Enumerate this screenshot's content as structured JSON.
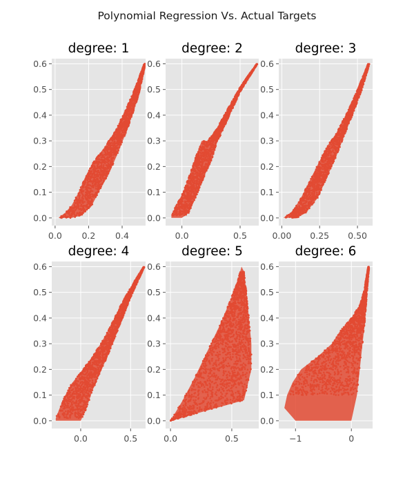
{
  "suptitle": "Polynomial Regression Vs. Actual Targets",
  "colors": {
    "points": "#e24a33",
    "panel_bg": "#e5e5e5",
    "grid": "#ffffff",
    "tick_text": "#555555"
  },
  "chart_data": [
    {
      "type": "scatter",
      "title": "degree: 1",
      "xlim": [
        -0.02,
        0.54
      ],
      "ylim": [
        -0.03,
        0.62
      ],
      "xticks": [
        {
          "v": 0.0,
          "label": "0.0"
        },
        {
          "v": 0.2,
          "label": "0.2"
        },
        {
          "v": 0.4,
          "label": "0.4"
        }
      ],
      "yticks": [
        {
          "v": 0.0,
          "label": "0.0"
        },
        {
          "v": 0.1,
          "label": "0.1"
        },
        {
          "v": 0.2,
          "label": "0.2"
        },
        {
          "v": 0.3,
          "label": "0.3"
        },
        {
          "v": 0.4,
          "label": "0.4"
        },
        {
          "v": 0.5,
          "label": "0.5"
        },
        {
          "v": 0.6,
          "label": "0.6"
        }
      ],
      "upper_edge": [
        [
          0.02,
          0.0
        ],
        [
          0.06,
          0.02
        ],
        [
          0.1,
          0.05
        ],
        [
          0.14,
          0.1
        ],
        [
          0.18,
          0.16
        ],
        [
          0.22,
          0.21
        ],
        [
          0.3,
          0.28
        ],
        [
          0.36,
          0.34
        ],
        [
          0.42,
          0.42
        ],
        [
          0.48,
          0.51
        ],
        [
          0.53,
          0.6
        ]
      ],
      "lower_edge": [
        [
          0.02,
          0.0
        ],
        [
          0.1,
          0.0
        ],
        [
          0.16,
          0.01
        ],
        [
          0.22,
          0.05
        ],
        [
          0.26,
          0.1
        ],
        [
          0.32,
          0.17
        ],
        [
          0.38,
          0.26
        ],
        [
          0.44,
          0.36
        ],
        [
          0.5,
          0.48
        ],
        [
          0.54,
          0.6
        ]
      ]
    },
    {
      "type": "scatter",
      "title": "degree: 2",
      "xlim": [
        -0.14,
        0.66
      ],
      "ylim": [
        -0.03,
        0.62
      ],
      "xticks": [
        {
          "v": 0.0,
          "label": "0.0"
        },
        {
          "v": 0.5,
          "label": "0.5"
        }
      ],
      "yticks": [
        {
          "v": 0.0,
          "label": "0.0"
        },
        {
          "v": 0.1,
          "label": "0.1"
        },
        {
          "v": 0.2,
          "label": "0.2"
        },
        {
          "v": 0.3,
          "label": "0.3"
        },
        {
          "v": 0.4,
          "label": "0.4"
        },
        {
          "v": 0.5,
          "label": "0.5"
        },
        {
          "v": 0.6,
          "label": "0.6"
        }
      ],
      "upper_edge": [
        [
          -0.09,
          0.01
        ],
        [
          -0.06,
          0.04
        ],
        [
          0.0,
          0.09
        ],
        [
          0.06,
          0.16
        ],
        [
          0.12,
          0.24
        ],
        [
          0.17,
          0.3
        ],
        [
          0.22,
          0.3
        ],
        [
          0.3,
          0.35
        ],
        [
          0.4,
          0.43
        ],
        [
          0.5,
          0.51
        ],
        [
          0.64,
          0.6
        ]
      ],
      "lower_edge": [
        [
          -0.09,
          0.0
        ],
        [
          0.0,
          0.0
        ],
        [
          0.06,
          0.02
        ],
        [
          0.12,
          0.08
        ],
        [
          0.2,
          0.17
        ],
        [
          0.26,
          0.23
        ],
        [
          0.3,
          0.29
        ],
        [
          0.4,
          0.39
        ],
        [
          0.5,
          0.49
        ],
        [
          0.65,
          0.6
        ]
      ]
    },
    {
      "type": "scatter",
      "title": "degree: 3",
      "xlim": [
        -0.02,
        0.6
      ],
      "ylim": [
        -0.03,
        0.62
      ],
      "xticks": [
        {
          "v": 0.0,
          "label": "0.00"
        },
        {
          "v": 0.25,
          "label": "0.25"
        },
        {
          "v": 0.5,
          "label": "0.50"
        }
      ],
      "yticks": [
        {
          "v": 0.0,
          "label": "0.0"
        },
        {
          "v": 0.1,
          "label": "0.1"
        },
        {
          "v": 0.2,
          "label": "0.2"
        },
        {
          "v": 0.3,
          "label": "0.3"
        },
        {
          "v": 0.4,
          "label": "0.4"
        },
        {
          "v": 0.5,
          "label": "0.5"
        },
        {
          "v": 0.6,
          "label": "0.6"
        }
      ],
      "upper_edge": [
        [
          0.01,
          0.0
        ],
        [
          0.06,
          0.02
        ],
        [
          0.12,
          0.07
        ],
        [
          0.18,
          0.14
        ],
        [
          0.24,
          0.21
        ],
        [
          0.3,
          0.28
        ],
        [
          0.36,
          0.33
        ],
        [
          0.44,
          0.42
        ],
        [
          0.5,
          0.5
        ],
        [
          0.57,
          0.6
        ]
      ],
      "lower_edge": [
        [
          0.01,
          0.0
        ],
        [
          0.1,
          0.0
        ],
        [
          0.16,
          0.02
        ],
        [
          0.24,
          0.08
        ],
        [
          0.3,
          0.16
        ],
        [
          0.36,
          0.24
        ],
        [
          0.42,
          0.33
        ],
        [
          0.48,
          0.42
        ],
        [
          0.53,
          0.5
        ],
        [
          0.58,
          0.6
        ]
      ]
    },
    {
      "type": "scatter",
      "title": "degree: 4",
      "xlim": [
        -0.29,
        0.65
      ],
      "ylim": [
        -0.03,
        0.62
      ],
      "xticks": [
        {
          "v": 0.0,
          "label": "0.0"
        },
        {
          "v": 0.5,
          "label": "0.5"
        }
      ],
      "yticks": [
        {
          "v": 0.0,
          "label": "0.0"
        },
        {
          "v": 0.1,
          "label": "0.1"
        },
        {
          "v": 0.2,
          "label": "0.2"
        },
        {
          "v": 0.3,
          "label": "0.3"
        },
        {
          "v": 0.4,
          "label": "0.4"
        },
        {
          "v": 0.5,
          "label": "0.5"
        },
        {
          "v": 0.6,
          "label": "0.6"
        }
      ],
      "upper_edge": [
        [
          -0.25,
          0.01
        ],
        [
          -0.18,
          0.08
        ],
        [
          -0.1,
          0.14
        ],
        [
          0.0,
          0.19
        ],
        [
          0.1,
          0.24
        ],
        [
          0.2,
          0.3
        ],
        [
          0.3,
          0.37
        ],
        [
          0.4,
          0.45
        ],
        [
          0.5,
          0.52
        ],
        [
          0.63,
          0.6
        ]
      ],
      "lower_edge": [
        [
          -0.25,
          0.0
        ],
        [
          0.0,
          0.0
        ],
        [
          0.06,
          0.05
        ],
        [
          0.12,
          0.12
        ],
        [
          0.2,
          0.19
        ],
        [
          0.3,
          0.28
        ],
        [
          0.4,
          0.38
        ],
        [
          0.5,
          0.48
        ],
        [
          0.64,
          0.6
        ]
      ]
    },
    {
      "type": "scatter",
      "title": "degree: 5",
      "xlim": [
        -0.04,
        0.72
      ],
      "ylim": [
        -0.03,
        0.62
      ],
      "xticks": [
        {
          "v": 0.0,
          "label": "0.0"
        },
        {
          "v": 0.5,
          "label": "0.5"
        }
      ],
      "yticks": [
        {
          "v": 0.0,
          "label": "0.0"
        },
        {
          "v": 0.1,
          "label": "0.1"
        },
        {
          "v": 0.2,
          "label": "0.2"
        },
        {
          "v": 0.3,
          "label": "0.3"
        },
        {
          "v": 0.4,
          "label": "0.4"
        },
        {
          "v": 0.5,
          "label": "0.5"
        },
        {
          "v": 0.6,
          "label": "0.6"
        }
      ],
      "upper_edge": [
        [
          0.0,
          0.0
        ],
        [
          0.1,
          0.08
        ],
        [
          0.2,
          0.17
        ],
        [
          0.3,
          0.27
        ],
        [
          0.4,
          0.37
        ],
        [
          0.48,
          0.46
        ],
        [
          0.55,
          0.55
        ],
        [
          0.58,
          0.6
        ]
      ],
      "lower_edge": [
        [
          0.0,
          0.0
        ],
        [
          0.15,
          0.02
        ],
        [
          0.3,
          0.04
        ],
        [
          0.45,
          0.06
        ],
        [
          0.6,
          0.08
        ],
        [
          0.66,
          0.2
        ],
        [
          0.66,
          0.3
        ],
        [
          0.64,
          0.4
        ],
        [
          0.62,
          0.5
        ],
        [
          0.6,
          0.58
        ]
      ]
    },
    {
      "type": "scatter",
      "title": "degree: 6",
      "xlim": [
        -1.3,
        0.38
      ],
      "ylim": [
        -0.03,
        0.62
      ],
      "xticks": [
        {
          "v": -1,
          "label": "−1"
        },
        {
          "v": 0,
          "label": "0"
        }
      ],
      "yticks": [
        {
          "v": 0.0,
          "label": "0.0"
        },
        {
          "v": 0.1,
          "label": "0.1"
        },
        {
          "v": 0.2,
          "label": "0.2"
        },
        {
          "v": 0.3,
          "label": "0.3"
        },
        {
          "v": 0.4,
          "label": "0.4"
        },
        {
          "v": 0.5,
          "label": "0.5"
        },
        {
          "v": 0.6,
          "label": "0.6"
        }
      ],
      "upper_edge": [
        [
          -1.15,
          0.1
        ],
        [
          -1.05,
          0.15
        ],
        [
          -0.9,
          0.2
        ],
        [
          -0.6,
          0.25
        ],
        [
          -0.35,
          0.3
        ],
        [
          -0.2,
          0.35
        ],
        [
          0.0,
          0.4
        ],
        [
          0.15,
          0.45
        ],
        [
          0.22,
          0.5
        ],
        [
          0.3,
          0.6
        ]
      ],
      "lower_edge": [
        [
          -1.2,
          0.05
        ],
        [
          -1.0,
          0.0
        ],
        [
          -0.5,
          0.0
        ],
        [
          0.0,
          0.0
        ],
        [
          0.1,
          0.1
        ],
        [
          0.15,
          0.2
        ],
        [
          0.2,
          0.3
        ],
        [
          0.25,
          0.4
        ],
        [
          0.28,
          0.5
        ],
        [
          0.32,
          0.6
        ]
      ]
    }
  ]
}
